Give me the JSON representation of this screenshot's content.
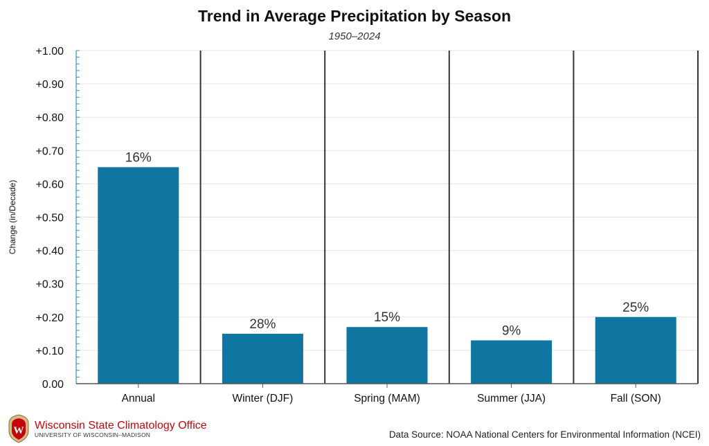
{
  "chart_data": {
    "type": "bar",
    "title": "Trend in Average Precipitation by Season",
    "subtitle": "1950–2024",
    "xlabel": "",
    "ylabel": "Change (in/Decade)",
    "categories": [
      "Annual",
      "Winter (DJF)",
      "Spring (MAM)",
      "Summer (JJA)",
      "Fall (SON)"
    ],
    "values": [
      0.65,
      0.15,
      0.17,
      0.13,
      0.2
    ],
    "data_labels": [
      "16%",
      "28%",
      "15%",
      "9%",
      "25%"
    ],
    "ylim": [
      0,
      1.0
    ],
    "yticks": [
      0.0,
      0.1,
      0.2,
      0.3,
      0.4,
      0.5,
      0.6,
      0.7,
      0.8,
      0.9,
      1.0
    ],
    "ytick_labels": [
      "0.00",
      "+0.10",
      "+0.20",
      "+0.30",
      "+0.40",
      "+0.50",
      "+0.60",
      "+0.70",
      "+0.80",
      "+0.90",
      "+1.00"
    ],
    "minor_tick_step": 0.02,
    "grid": true,
    "legend": "none",
    "colors": {
      "bar": "#0e76a0",
      "grid": "#e3e3e3",
      "separator": "#333333",
      "minor_tick": "#3b8fc0"
    }
  },
  "footer": {
    "org_name": "Wisconsin State Climatology Office",
    "org_sub": "UNIVERSITY OF WISCONSIN–MADISON",
    "source": "Data Source: NOAA National Centers for Environmental Information (NCEI)",
    "logo_icon": "uw-crest-icon",
    "brand_color": "#c5050c"
  }
}
